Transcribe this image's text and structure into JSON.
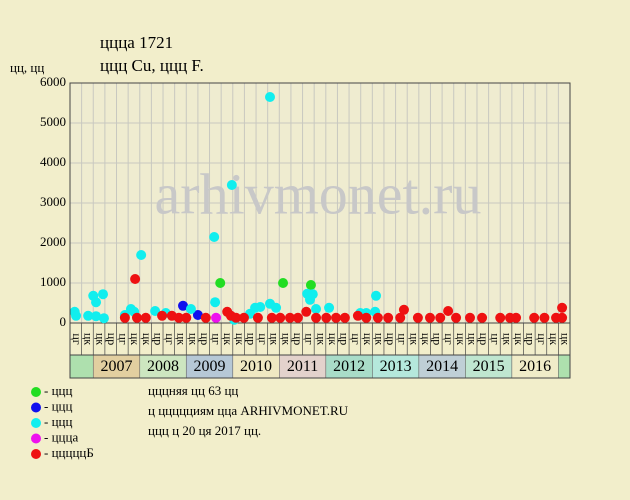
{
  "chart_data": {
    "type": "scatter",
    "title": "ццца 1721",
    "subtitle": "ццц Cu, ццц F.",
    "y_label": "цц, цц",
    "watermark": "arhivmonet.ru",
    "xlim": [
      2006.5,
      2017.25
    ],
    "ylim": [
      0,
      6000
    ],
    "yticks": [
      0,
      1000,
      2000,
      3000,
      4000,
      5000,
      6000
    ],
    "grid": true,
    "xticks": [
      {
        "value": 2006.5,
        "label": "цг"
      },
      {
        "value": 2006.75,
        "label": "цк"
      },
      {
        "value": 2007,
        "label": "цк"
      },
      {
        "value": 2007.25,
        "label": "цр"
      },
      {
        "value": 2007.5,
        "label": "цг"
      },
      {
        "value": 2007.75,
        "label": "цк"
      },
      {
        "value": 2008,
        "label": "цк"
      },
      {
        "value": 2008.25,
        "label": "цр"
      },
      {
        "value": 2008.5,
        "label": "цг"
      },
      {
        "value": 2008.75,
        "label": "цк"
      },
      {
        "value": 2009,
        "label": "цк"
      },
      {
        "value": 2009.25,
        "label": "цр"
      },
      {
        "value": 2009.5,
        "label": "цг"
      },
      {
        "value": 2009.75,
        "label": "цк"
      },
      {
        "value": 2010,
        "label": "цк"
      },
      {
        "value": 2010.25,
        "label": "цр"
      },
      {
        "value": 2010.5,
        "label": "цг"
      },
      {
        "value": 2010.75,
        "label": "цк"
      },
      {
        "value": 2011,
        "label": "цк"
      },
      {
        "value": 2011.25,
        "label": "цр"
      },
      {
        "value": 2011.5,
        "label": "цг"
      },
      {
        "value": 2011.75,
        "label": "цк"
      },
      {
        "value": 2012,
        "label": "цк"
      },
      {
        "value": 2012.25,
        "label": "цр"
      },
      {
        "value": 2012.5,
        "label": "цг"
      },
      {
        "value": 2012.75,
        "label": "цк"
      },
      {
        "value": 2013,
        "label": "цк"
      },
      {
        "value": 2013.25,
        "label": "цр"
      },
      {
        "value": 2013.5,
        "label": "цг"
      },
      {
        "value": 2013.75,
        "label": "цк"
      },
      {
        "value": 2014,
        "label": "цк"
      },
      {
        "value": 2014.25,
        "label": "цр"
      },
      {
        "value": 2014.5,
        "label": "цг"
      },
      {
        "value": 2014.75,
        "label": "цк"
      },
      {
        "value": 2015,
        "label": "цк"
      },
      {
        "value": 2015.25,
        "label": "цр"
      },
      {
        "value": 2015.5,
        "label": "цг"
      },
      {
        "value": 2015.75,
        "label": "цк"
      },
      {
        "value": 2016,
        "label": "цк"
      },
      {
        "value": 2016.25,
        "label": "цр"
      },
      {
        "value": 2016.5,
        "label": "цг"
      },
      {
        "value": 2016.75,
        "label": "цк"
      },
      {
        "value": 2017,
        "label": "цк"
      }
    ],
    "years": [
      2007,
      2008,
      2009,
      2010,
      2011,
      2012,
      2013,
      2014,
      2015,
      2016
    ],
    "year_colors": [
      "#e2cfa0",
      "#cde6c0",
      "#b6c8d6",
      "#efe8c2",
      "#e3d2cc",
      "#a9dcc8",
      "#b5e8dc",
      "#bfcfd6",
      "#bfe6d0",
      "#f0ecc8"
    ],
    "edge_color": "#aee0ae",
    "series": [
      {
        "name": "- ццц",
        "color": "#22dd22",
        "x": [
          2009.73,
          2011.08,
          2011.68
        ],
        "values": [
          1000,
          1000,
          950
        ]
      },
      {
        "name": "- ццц",
        "color": "#1010ee",
        "x": [
          2008.93,
          2009.25
        ],
        "values": [
          430,
          200
        ]
      },
      {
        "name": "- ццц",
        "color": "#11eeee",
        "x": [
          2006.6,
          2006.63,
          2006.89,
          2007.0,
          2007.06,
          2007.21,
          2007.06,
          2007.23,
          2007.68,
          2007.81,
          2007.88,
          2008.03,
          2008.33,
          2008.56,
          2009.1,
          2009.6,
          2009.62,
          2009.98,
          2010.03,
          2010.37,
          2010.48,
          2010.59,
          2010.8,
          2010.8,
          2010.93,
          2011.6,
          2011.66,
          2011.72,
          2011.79,
          2012.07,
          2012.74,
          2012.87,
          2013.08,
          2013.06
        ],
        "values": [
          280,
          180,
          180,
          680,
          520,
          720,
          170,
          120,
          200,
          350,
          280,
          1700,
          300,
          250,
          350,
          2150,
          520,
          3450,
          80,
          230,
          380,
          400,
          5650,
          480,
          380,
          730,
          580,
          720,
          350,
          380,
          250,
          250,
          680,
          280
        ]
      },
      {
        "name": "- ццца",
        "color": "#ee11ee",
        "x": [
          2009.64
        ],
        "values": [
          130
        ]
      },
      {
        "name": "- цццццБ",
        "color": "#ee1111",
        "x": [
          2007.9,
          2007.68,
          2007.94,
          2008.13,
          2008.48,
          2008.69,
          2008.84,
          2009.0,
          2009.42,
          2009.88,
          2009.96,
          2010.07,
          2010.24,
          2010.54,
          2010.84,
          2011.02,
          2011.23,
          2011.4,
          2011.58,
          2011.79,
          2012.01,
          2012.22,
          2012.41,
          2012.69,
          2012.87,
          2013.12,
          2013.34,
          2013.68,
          2013.6,
          2013.98,
          2014.24,
          2014.46,
          2014.63,
          2014.8,
          2015.1,
          2015.36,
          2015.75,
          2015.96,
          2016.09,
          2016.48,
          2016.7,
          2016.95,
          2017.08,
          2017.08
        ],
        "values": [
          1100,
          130,
          130,
          130,
          180,
          180,
          130,
          130,
          130,
          280,
          180,
          130,
          130,
          130,
          130,
          130,
          130,
          130,
          280,
          130,
          130,
          130,
          130,
          180,
          130,
          130,
          130,
          330,
          130,
          130,
          130,
          130,
          300,
          130,
          130,
          130,
          130,
          130,
          130,
          130,
          130,
          130,
          380,
          130
        ]
      }
    ],
    "notes": [
      "цццняя цц 63 цц",
      "ц ццццциям цца ARHIVMONET.RU",
      "ццц ц 20 ця 2017 цц."
    ]
  }
}
